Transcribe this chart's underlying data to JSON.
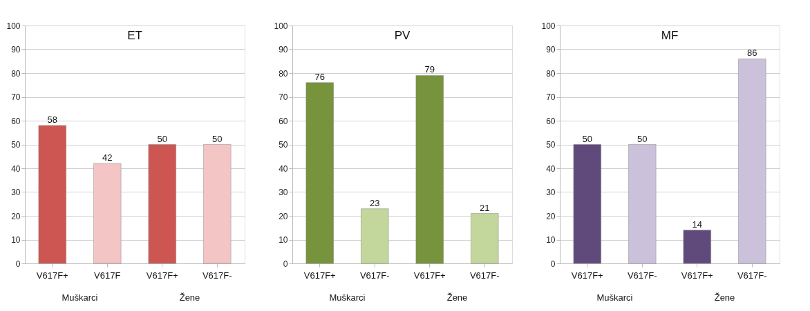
{
  "chart_data": [
    {
      "type": "bar",
      "title": "ET",
      "categories": [
        "V617F+",
        "V617F",
        "V617F+",
        "V617F-"
      ],
      "values": [
        58,
        42,
        50,
        50
      ],
      "colors": [
        "#cd5652",
        "#f4c5c5",
        "#cd5652",
        "#f4c5c5"
      ],
      "ylim": [
        0,
        100
      ],
      "yticks": [
        0,
        10,
        20,
        30,
        40,
        50,
        60,
        70,
        80,
        90,
        100
      ],
      "grid": "y",
      "data_labels": true,
      "annotations": [
        "Muškarci",
        "Žene"
      ]
    },
    {
      "type": "bar",
      "title": "PV",
      "categories": [
        "V617F+",
        "V617F-",
        "V617F+",
        "V617F-"
      ],
      "values": [
        76,
        23,
        79,
        21
      ],
      "colors": [
        "#77933c",
        "#c3d69b",
        "#77933c",
        "#c3d69b"
      ],
      "ylim": [
        0,
        100
      ],
      "yticks": [
        0,
        10,
        20,
        30,
        40,
        50,
        60,
        70,
        80,
        90,
        100
      ],
      "grid": "y",
      "data_labels": true,
      "annotations": [
        "Muškarci",
        "Žene"
      ]
    },
    {
      "type": "bar",
      "title": "MF",
      "categories": [
        "V617F+",
        "V617F-",
        "V617F+",
        "V617F-"
      ],
      "values": [
        50,
        50,
        14,
        86
      ],
      "colors": [
        "#604a7b",
        "#ccc1da",
        "#604a7b",
        "#ccc1da"
      ],
      "ylim": [
        0,
        100
      ],
      "yticks": [
        0,
        10,
        20,
        30,
        40,
        50,
        60,
        70,
        80,
        90,
        100
      ],
      "grid": "y",
      "data_labels": true,
      "annotations": [
        "Muškarci",
        "Žene"
      ]
    }
  ]
}
